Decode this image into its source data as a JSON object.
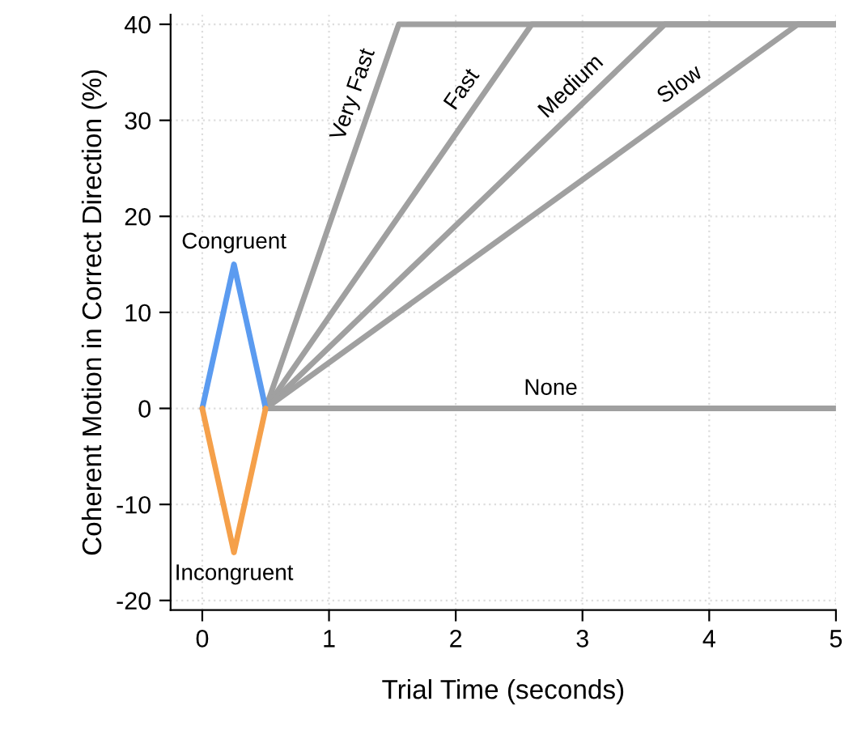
{
  "chart_data": {
    "type": "line",
    "xlabel": "Trial Time (seconds)",
    "ylabel": "Coherent Motion in Correct Direction (%)",
    "xlim": [
      -0.25,
      5
    ],
    "ylim": [
      -21,
      41
    ],
    "xticks": [
      0,
      1,
      2,
      3,
      4,
      5
    ],
    "yticks": [
      -20,
      -10,
      0,
      10,
      20,
      30,
      40
    ],
    "grid": true,
    "legend": false,
    "marker": "none",
    "line_style": "solid",
    "series": [
      {
        "name": "Very Fast",
        "color": "#a0a0a0",
        "x": [
          0.5,
          1.55,
          5
        ],
        "values": [
          0,
          40,
          40
        ]
      },
      {
        "name": "Fast",
        "color": "#a0a0a0",
        "x": [
          0.5,
          2.6,
          5
        ],
        "values": [
          0,
          40,
          40
        ]
      },
      {
        "name": "Medium",
        "color": "#a0a0a0",
        "x": [
          0.5,
          3.65,
          5
        ],
        "values": [
          0,
          40,
          40
        ]
      },
      {
        "name": "Slow",
        "color": "#a0a0a0",
        "x": [
          0.5,
          4.7,
          5
        ],
        "values": [
          0,
          40,
          40
        ]
      },
      {
        "name": "None",
        "color": "#a0a0a0",
        "x": [
          0.5,
          5
        ],
        "values": [
          0,
          0
        ]
      },
      {
        "name": "Congruent",
        "color": "#5b9bf0",
        "x": [
          0,
          0.25,
          0.5
        ],
        "values": [
          0,
          15,
          0
        ]
      },
      {
        "name": "Incongruent",
        "color": "#f5a04a",
        "x": [
          0,
          0.25,
          0.5
        ],
        "values": [
          0,
          -15,
          0
        ]
      }
    ]
  }
}
